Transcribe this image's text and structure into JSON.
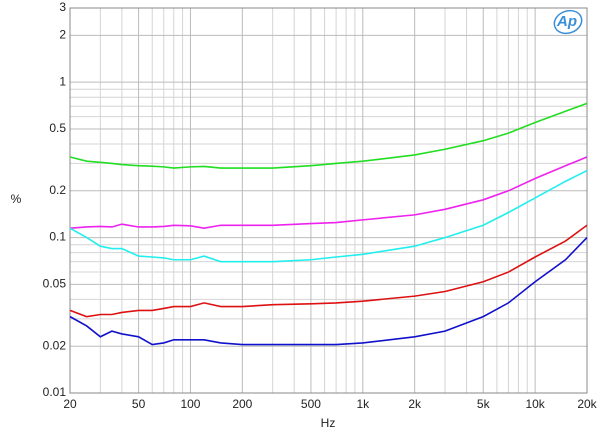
{
  "chart_data": {
    "type": "line",
    "logo": "Ap",
    "y_label": "%",
    "x_label": "Hz",
    "xscale": "log",
    "yscale": "log",
    "grid": true,
    "xlim": [
      20,
      20000
    ],
    "ylim": [
      0.01,
      3
    ],
    "xticks": [
      20,
      50,
      100,
      200,
      500,
      {
        "value": 1000,
        "label": "1k"
      },
      {
        "value": 2000,
        "label": "2k"
      },
      {
        "value": 5000,
        "label": "5k"
      },
      {
        "value": 10000,
        "label": "10k"
      },
      {
        "value": 20000,
        "label": "20k"
      }
    ],
    "yticks": [
      0.01,
      0.02,
      0.05,
      0.1,
      0.2,
      0.5,
      1,
      2,
      3
    ],
    "xminor": [
      30,
      40,
      60,
      70,
      80,
      90,
      300,
      400,
      600,
      700,
      800,
      900,
      3000,
      4000,
      6000,
      7000,
      8000,
      9000
    ],
    "yminor": [
      0.03,
      0.04,
      0.06,
      0.07,
      0.08,
      0.09,
      0.3,
      0.4,
      0.6,
      0.7,
      0.8,
      0.9
    ],
    "x": [
      20,
      25,
      30,
      35,
      40,
      50,
      60,
      70,
      80,
      100,
      120,
      150,
      200,
      300,
      500,
      700,
      1000,
      2000,
      3000,
      5000,
      7000,
      10000,
      15000,
      20000
    ],
    "series": [
      {
        "color": "#22dd22",
        "values": [
          0.33,
          0.31,
          0.305,
          0.3,
          0.295,
          0.29,
          0.288,
          0.285,
          0.28,
          0.285,
          0.287,
          0.28,
          0.28,
          0.28,
          0.29,
          0.3,
          0.31,
          0.34,
          0.37,
          0.42,
          0.47,
          0.55,
          0.65,
          0.73
        ]
      },
      {
        "color": "#ee22ee",
        "values": [
          0.115,
          0.117,
          0.118,
          0.117,
          0.122,
          0.117,
          0.117,
          0.118,
          0.12,
          0.119,
          0.115,
          0.12,
          0.12,
          0.12,
          0.123,
          0.125,
          0.13,
          0.14,
          0.152,
          0.175,
          0.2,
          0.24,
          0.29,
          0.33
        ]
      },
      {
        "color": "#22eeee",
        "values": [
          0.115,
          0.1,
          0.088,
          0.085,
          0.085,
          0.076,
          0.075,
          0.074,
          0.072,
          0.072,
          0.076,
          0.07,
          0.07,
          0.07,
          0.072,
          0.075,
          0.078,
          0.088,
          0.1,
          0.12,
          0.145,
          0.18,
          0.23,
          0.27
        ]
      },
      {
        "color": "#dd1111",
        "values": [
          0.034,
          0.031,
          0.032,
          0.032,
          0.033,
          0.034,
          0.034,
          0.035,
          0.036,
          0.036,
          0.038,
          0.036,
          0.036,
          0.037,
          0.0375,
          0.038,
          0.039,
          0.042,
          0.045,
          0.052,
          0.06,
          0.075,
          0.095,
          0.12
        ]
      },
      {
        "color": "#1111cc",
        "values": [
          0.031,
          0.027,
          0.023,
          0.025,
          0.024,
          0.023,
          0.0205,
          0.021,
          0.022,
          0.022,
          0.022,
          0.021,
          0.0205,
          0.0205,
          0.0205,
          0.0205,
          0.021,
          0.023,
          0.025,
          0.031,
          0.038,
          0.052,
          0.072,
          0.1
        ]
      }
    ]
  }
}
